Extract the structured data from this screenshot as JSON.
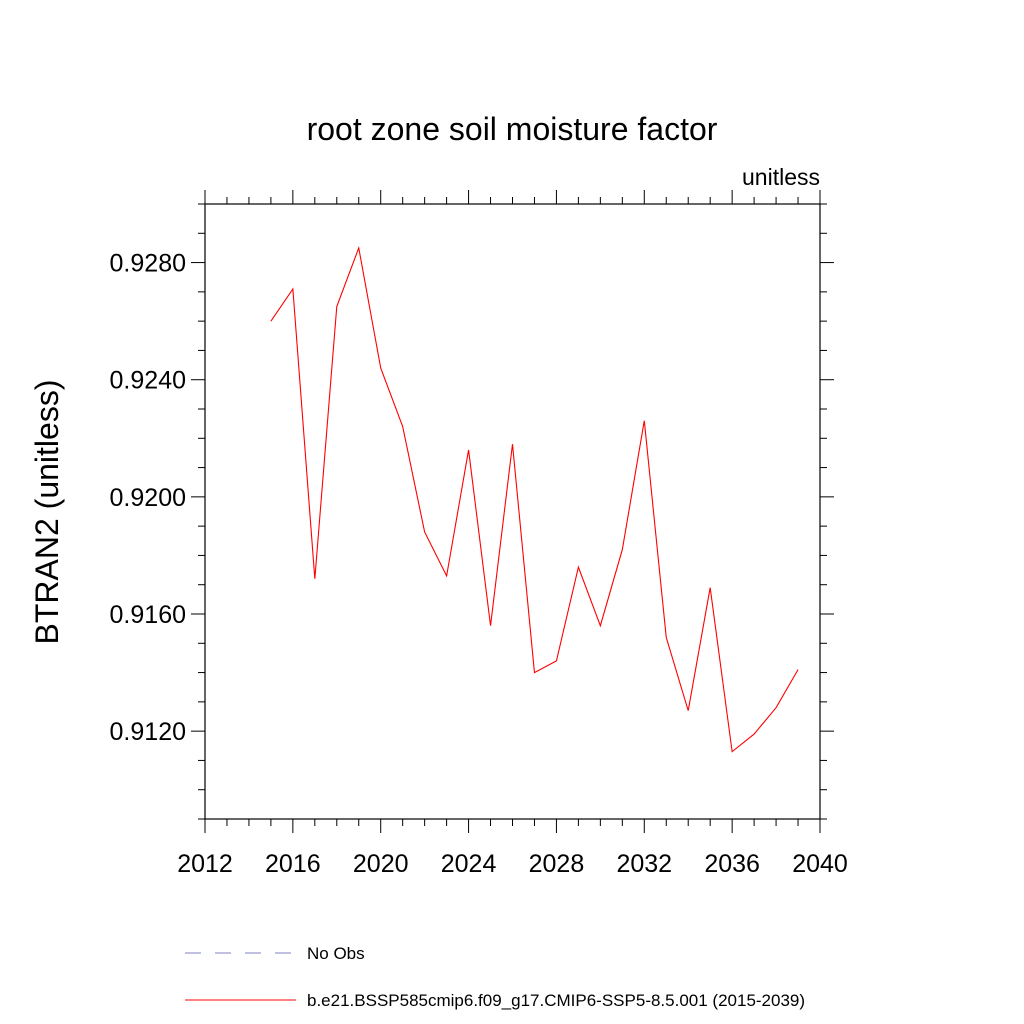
{
  "chart_data": {
    "type": "line",
    "title": "root zone soil moisture factor",
    "units_label": "unitless",
    "ylabel": "BTRAN2  (unitless)",
    "xlabel": "",
    "xlim": [
      2012,
      2040
    ],
    "ylim": [
      0.909,
      0.93
    ],
    "xticks": [
      {
        "value": 2012,
        "label": "2012"
      },
      {
        "value": 2016,
        "label": "2016"
      },
      {
        "value": 2020,
        "label": "2020"
      },
      {
        "value": 2024,
        "label": "2024"
      },
      {
        "value": 2028,
        "label": "2028"
      },
      {
        "value": 2032,
        "label": "2032"
      },
      {
        "value": 2036,
        "label": "2036"
      },
      {
        "value": 2040,
        "label": "2040"
      }
    ],
    "yticks": [
      {
        "value": 0.912,
        "label": "0.9120"
      },
      {
        "value": 0.916,
        "label": "0.9160"
      },
      {
        "value": 0.92,
        "label": "0.9200"
      },
      {
        "value": 0.924,
        "label": "0.9240"
      },
      {
        "value": 0.928,
        "label": "0.9280"
      }
    ],
    "grid": false,
    "legend_placement": "bottom",
    "series": [
      {
        "name": "No Obs",
        "color": "#8080c0",
        "style": "dashed",
        "x": [],
        "y": []
      },
      {
        "name": "b.e21.BSSP585cmip6.f09_g17.CMIP6-SSP5-8.5.001 (2015-2039)",
        "color": "#ff0000",
        "style": "solid",
        "x": [
          2015,
          2016,
          2017,
          2018,
          2019,
          2020,
          2021,
          2022,
          2023,
          2024,
          2025,
          2026,
          2027,
          2028,
          2029,
          2030,
          2031,
          2032,
          2033,
          2034,
          2035,
          2036,
          2037,
          2038,
          2039
        ],
        "y": [
          0.926,
          0.9271,
          0.9172,
          0.9265,
          0.9285,
          0.9244,
          0.9224,
          0.9188,
          0.9173,
          0.9216,
          0.9156,
          0.9218,
          0.914,
          0.9144,
          0.9176,
          0.9156,
          0.9182,
          0.9226,
          0.9152,
          0.9127,
          0.9169,
          0.9113,
          0.9119,
          0.9128,
          0.9141
        ]
      }
    ]
  }
}
